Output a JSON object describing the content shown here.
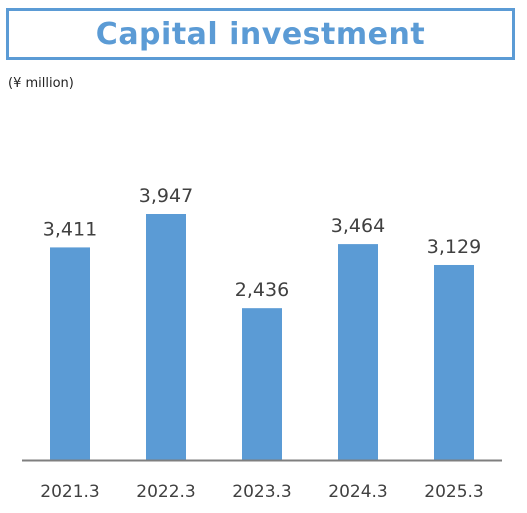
{
  "header": {
    "title": "Capital investment",
    "unit": "(¥ million)"
  },
  "chart_data": {
    "type": "bar",
    "title": "Capital investment",
    "ylabel": "(¥ million)",
    "categories": [
      "2021.3",
      "2022.3",
      "2023.3",
      "2024.3",
      "2025.3"
    ],
    "values": [
      3411,
      3947,
      2436,
      3464,
      3129
    ],
    "value_labels": [
      "3,411",
      "3,947",
      "2,436",
      "3,464",
      "3,129"
    ],
    "ylim": [
      0,
      3947
    ],
    "grid": false,
    "legend": "none",
    "bar_color": "#5b9bd5",
    "axis_color": "#7f7f7f"
  }
}
